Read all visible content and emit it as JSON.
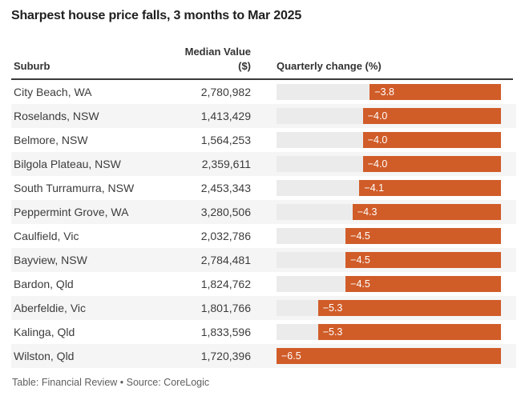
{
  "title": "Sharpest house price falls, 3 months to Mar 2025",
  "columns": {
    "suburb": "Suburb",
    "median_line1": "Median Value",
    "median_line2": "($)",
    "change": "Quarterly change (%)"
  },
  "rows": [
    {
      "suburb": "City Beach, WA",
      "median": "2,780,982",
      "change": -3.8,
      "change_label": "−3.8"
    },
    {
      "suburb": "Roselands, NSW",
      "median": "1,413,429",
      "change": -4.0,
      "change_label": "−4.0"
    },
    {
      "suburb": "Belmore, NSW",
      "median": "1,564,253",
      "change": -4.0,
      "change_label": "−4.0"
    },
    {
      "suburb": "Bilgola Plateau, NSW",
      "median": "2,359,611",
      "change": -4.0,
      "change_label": "−4.0"
    },
    {
      "suburb": "South Turramurra, NSW",
      "median": "2,453,343",
      "change": -4.1,
      "change_label": "−4.1"
    },
    {
      "suburb": "Peppermint Grove, WA",
      "median": "3,280,506",
      "change": -4.3,
      "change_label": "−4.3"
    },
    {
      "suburb": "Caulfield, Vic",
      "median": "2,032,786",
      "change": -4.5,
      "change_label": "−4.5"
    },
    {
      "suburb": "Bayview, NSW",
      "median": "2,784,481",
      "change": -4.5,
      "change_label": "−4.5"
    },
    {
      "suburb": "Bardon, Qld",
      "median": "1,824,762",
      "change": -4.5,
      "change_label": "−4.5"
    },
    {
      "suburb": "Aberfeldie, Vic",
      "median": "1,801,766",
      "change": -5.3,
      "change_label": "−5.3"
    },
    {
      "suburb": "Kalinga, Qld",
      "median": "1,833,596",
      "change": -5.3,
      "change_label": "−5.3"
    },
    {
      "suburb": "Wilston, Qld",
      "median": "1,720,396",
      "change": -6.5,
      "change_label": "−6.5"
    }
  ],
  "footer": "Table: Financial Review • Source: CoreLogic",
  "colors": {
    "bar": "#d05c28",
    "track": "#ebebeb",
    "stripe": "#f5f5f5",
    "rule": "#3a3a3a"
  },
  "chart_data": {
    "type": "bar",
    "orientation": "horizontal",
    "title": "Sharpest house price falls, 3 months to Mar 2025",
    "categories": [
      "City Beach, WA",
      "Roselands, NSW",
      "Belmore, NSW",
      "Bilgola Plateau, NSW",
      "South Turramurra, NSW",
      "Peppermint Grove, WA",
      "Caulfield, Vic",
      "Bayview, NSW",
      "Bardon, Qld",
      "Aberfeldie, Vic",
      "Kalinga, Qld",
      "Wilston, Qld"
    ],
    "series": [
      {
        "name": "Median Value ($)",
        "values": [
          2780982,
          1413429,
          1564253,
          2359611,
          2453343,
          3280506,
          2032786,
          2784481,
          1824762,
          1801766,
          1833596,
          1720396
        ]
      },
      {
        "name": "Quarterly change (%)",
        "values": [
          -3.8,
          -4.0,
          -4.0,
          -4.0,
          -4.1,
          -4.3,
          -4.5,
          -4.5,
          -4.5,
          -5.3,
          -5.3,
          -6.5
        ]
      }
    ],
    "xlim": [
      -6.5,
      0
    ],
    "grid": false,
    "legend": false,
    "bar_labels_inside": true,
    "source_note": "Table: Financial Review • Source: CoreLogic"
  }
}
